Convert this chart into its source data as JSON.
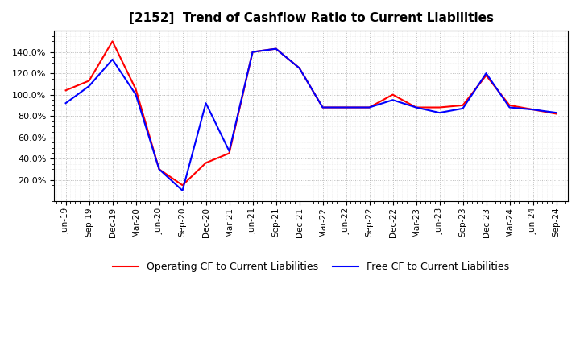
{
  "title": "[2152]  Trend of Cashflow Ratio to Current Liabilities",
  "background_color": "#ffffff",
  "grid_color": "#aaaaaa",
  "legend": [
    "Operating CF to Current Liabilities",
    "Free CF to Current Liabilities"
  ],
  "line_colors": [
    "#ff0000",
    "#0000ff"
  ],
  "x_labels": [
    "Jun-19",
    "Sep-19",
    "Dec-19",
    "Mar-20",
    "Jun-20",
    "Sep-20",
    "Dec-20",
    "Mar-21",
    "Jun-21",
    "Sep-21",
    "Dec-21",
    "Mar-22",
    "Jun-22",
    "Sep-22",
    "Dec-22",
    "Mar-23",
    "Jun-23",
    "Sep-23",
    "Dec-23",
    "Mar-24",
    "Jun-24",
    "Sep-24"
  ],
  "operating_cf": [
    1.04,
    1.13,
    1.5,
    1.05,
    0.3,
    0.15,
    0.36,
    0.45,
    1.4,
    1.43,
    1.25,
    0.88,
    0.88,
    0.88,
    1.0,
    0.88,
    0.88,
    0.9,
    1.18,
    0.9,
    0.86,
    0.82
  ],
  "free_cf": [
    0.92,
    1.08,
    1.33,
    1.0,
    0.3,
    0.1,
    0.92,
    0.47,
    1.4,
    1.43,
    1.25,
    0.88,
    0.88,
    0.88,
    0.95,
    0.88,
    0.83,
    0.87,
    1.2,
    0.88,
    0.86,
    0.83
  ]
}
